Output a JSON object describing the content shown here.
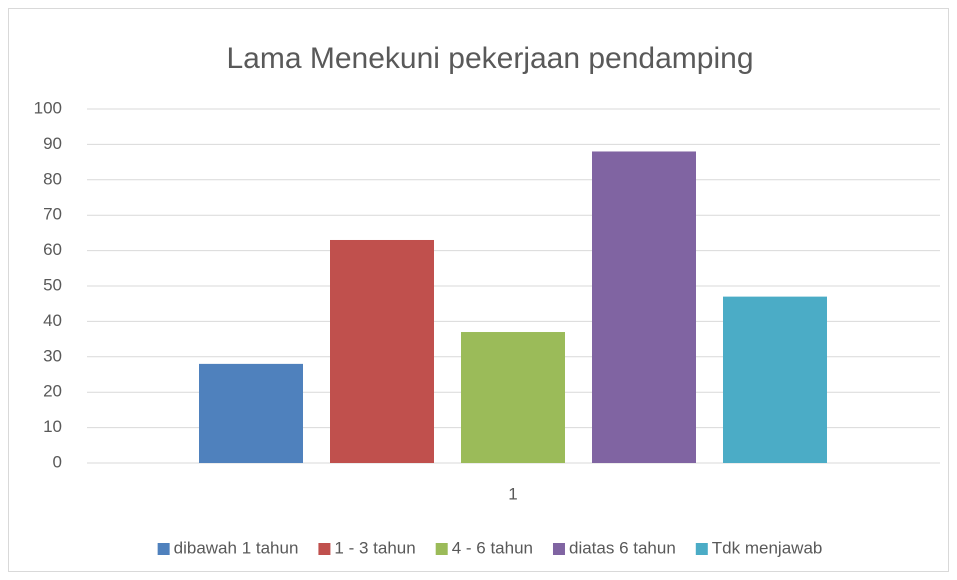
{
  "chart_data": {
    "type": "bar",
    "title": "Lama Menekuni pekerjaan pendamping",
    "categories": [
      "1"
    ],
    "series": [
      {
        "name": "dibawah 1 tahun",
        "color": "#4f81bd",
        "values": [
          28
        ]
      },
      {
        "name": "1 - 3 tahun",
        "color": "#c0504d",
        "values": [
          63
        ]
      },
      {
        "name": "4 - 6 tahun",
        "color": "#9bbb59",
        "values": [
          37
        ]
      },
      {
        "name": "diatas 6 tahun",
        "color": "#8064a2",
        "values": [
          88
        ]
      },
      {
        "name": "Tdk menjawab",
        "color": "#4bacc6",
        "values": [
          47
        ]
      }
    ],
    "ylim": [
      0,
      100
    ],
    "yticks": [
      0,
      10,
      20,
      30,
      40,
      50,
      60,
      70,
      80,
      90,
      100
    ],
    "grid": true,
    "legend": "bottom"
  }
}
